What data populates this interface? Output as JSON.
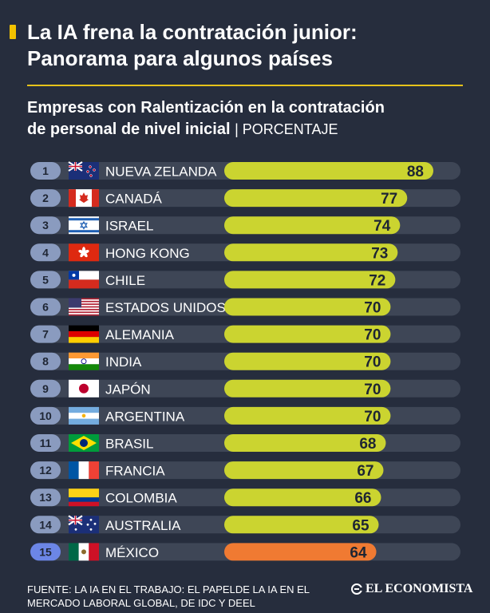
{
  "title_line1": "La IA frena la contratación junior:",
  "title_line2": "Panorama para algunos países",
  "subtitle_line1": "Empresas con Ralentización en la contratación",
  "subtitle_line2": "de personal de nivel inicial",
  "subtitle_unit": "| PORCENTAJE",
  "source_line1": "FUENTE: LA IA EN EL TRABAJO: EL PAPELDE LA IA EN EL",
  "source_line2": "MERCADO LABORAL GLOBAL, DE IDC Y DEEL",
  "logo_text": "EL ECONOMISTA",
  "colors": {
    "bar_default": "#cbd430",
    "bar_highlight": "#f07a32",
    "rank_default": "#8a9bbf",
    "rank_highlight": "#6c86e6",
    "track": "#3e4656"
  },
  "chart_data": {
    "type": "bar",
    "orientation": "horizontal",
    "ylim": [
      0,
      100
    ],
    "highlight": "MÉXICO",
    "categories": [
      "NUEVA ZELANDA",
      "CANADÁ",
      "ISRAEL",
      "HONG KONG",
      "CHILE",
      "ESTADOS UNIDOS",
      "ALEMANIA",
      "INDIA",
      "JAPÓN",
      "ARGENTINA",
      "BRASIL",
      "FRANCIA",
      "COLOMBIA",
      "AUSTRALIA",
      "MÉXICO"
    ],
    "ranks": [
      "1",
      "2",
      "3",
      "4",
      "5",
      "6",
      "7",
      "8",
      "9",
      "10",
      "11",
      "12",
      "13",
      "14",
      "15"
    ],
    "flags": [
      "flag-new-zealand",
      "flag-canada",
      "flag-israel",
      "flag-hong-kong",
      "flag-chile",
      "flag-usa",
      "flag-germany",
      "flag-india",
      "flag-japan",
      "flag-argentina",
      "flag-brazil",
      "flag-france",
      "flag-colombia",
      "flag-australia",
      "flag-mexico"
    ],
    "values": [
      88,
      77,
      74,
      73,
      72,
      70,
      70,
      70,
      70,
      70,
      68,
      67,
      66,
      65,
      64
    ]
  }
}
